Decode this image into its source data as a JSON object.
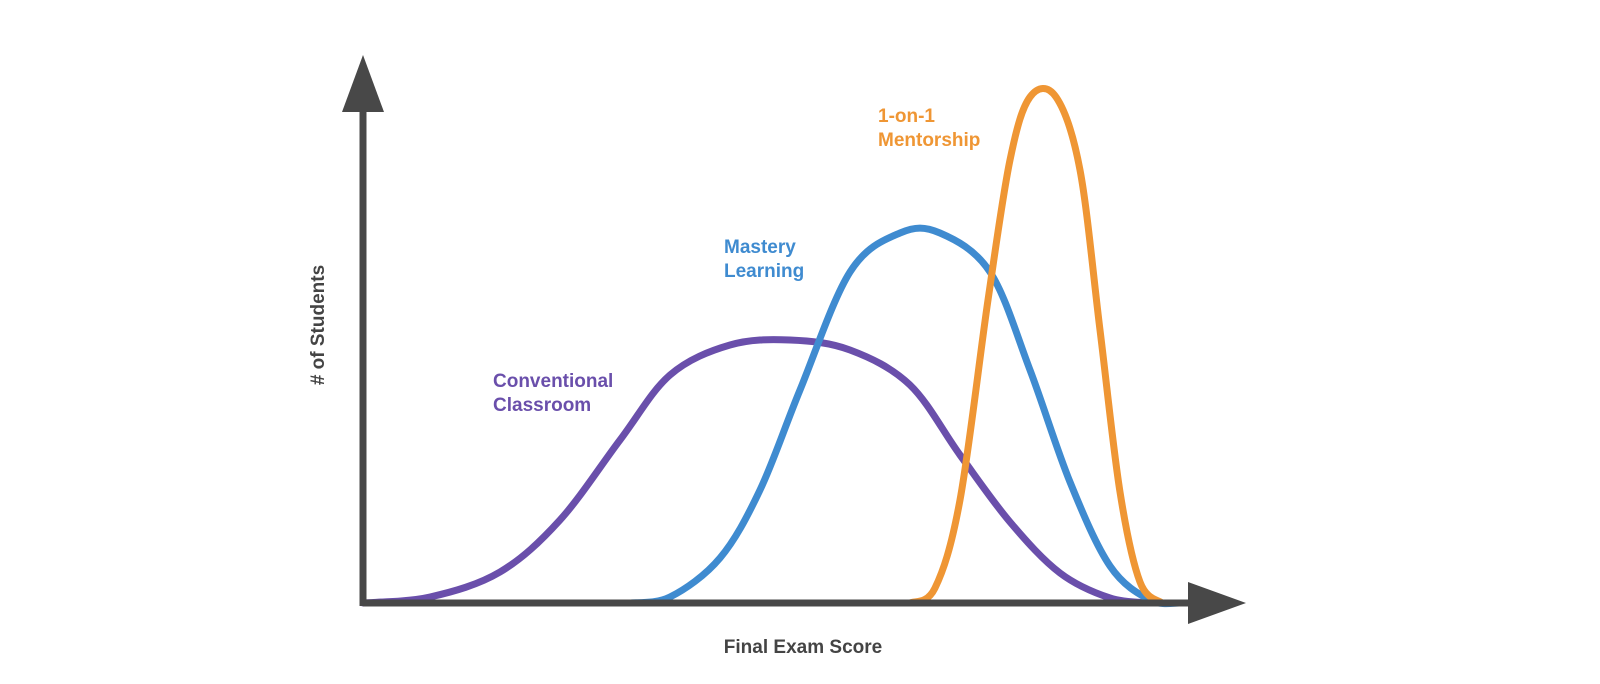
{
  "axes": {
    "x_label": "Final Exam Score",
    "y_label": "# of Students"
  },
  "curves": [
    {
      "label": [
        "Conventional",
        "Classroom"
      ],
      "color": "#6a4fab"
    },
    {
      "label": [
        "Mastery",
        "Learning"
      ],
      "color": "#3f8bd0"
    },
    {
      "label": [
        "1-on-1",
        "Mentorship"
      ],
      "color": "#ef9634"
    }
  ]
}
